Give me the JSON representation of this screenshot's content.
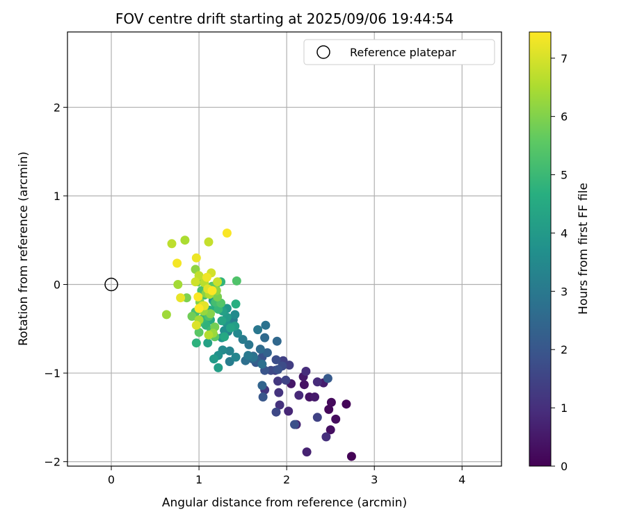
{
  "chart_data": {
    "type": "scatter",
    "title": "FOV centre drift starting at 2025/09/06 19:44:54",
    "xlabel": "Angular distance from reference (arcmin)",
    "ylabel": "Rotation from reference (arcmin)",
    "xlim": [
      -0.5,
      4.45
    ],
    "ylim": [
      -2.05,
      2.85
    ],
    "xticks": [
      0,
      1,
      2,
      3,
      4
    ],
    "yticks": [
      -2,
      -1,
      0,
      1,
      2
    ],
    "xtick_labels": [
      "0",
      "1",
      "2",
      "3",
      "4"
    ],
    "ytick_labels": [
      "−2",
      "−1",
      "0",
      "1",
      "2"
    ],
    "grid": true,
    "legend": {
      "position": "top-right",
      "label": "Reference platepar"
    },
    "reference_point": {
      "x": 0,
      "y": 0
    },
    "colorbar": {
      "label": "Hours from first FF file",
      "min": 0,
      "max": 7.45,
      "ticks": [
        0,
        1,
        2,
        3,
        4,
        5,
        6,
        7
      ],
      "tick_labels": [
        "0",
        "1",
        "2",
        "3",
        "4",
        "5",
        "6",
        "7"
      ],
      "colormap": "viridis"
    },
    "points": [
      [
        2.74,
        -1.94,
        0.05
      ],
      [
        2.68,
        -1.35,
        0.1
      ],
      [
        2.48,
        -1.41,
        0.15
      ],
      [
        2.51,
        -1.33,
        0.2
      ],
      [
        2.56,
        -1.52,
        0.25
      ],
      [
        2.5,
        -1.64,
        0.3
      ],
      [
        2.2,
        -1.13,
        0.35
      ],
      [
        2.26,
        -1.27,
        0.4
      ],
      [
        2.05,
        -1.12,
        0.45
      ],
      [
        2.19,
        -1.04,
        0.5
      ],
      [
        2.32,
        -1.27,
        0.55
      ],
      [
        2.42,
        -1.11,
        0.6
      ],
      [
        2.23,
        -1.89,
        0.7
      ],
      [
        2.11,
        -1.58,
        0.75
      ],
      [
        2.02,
        -1.43,
        0.8
      ],
      [
        2.14,
        -1.25,
        0.85
      ],
      [
        2.35,
        -1.1,
        0.9
      ],
      [
        2.22,
        -0.98,
        0.95
      ],
      [
        2.45,
        -1.72,
        1.0
      ],
      [
        1.92,
        -1.36,
        1.05
      ],
      [
        1.91,
        -1.22,
        1.1
      ],
      [
        1.75,
        -1.19,
        1.15
      ],
      [
        1.9,
        -1.09,
        1.2
      ],
      [
        1.87,
        -0.97,
        1.3
      ],
      [
        2.03,
        -0.91,
        1.35
      ],
      [
        1.96,
        -0.86,
        1.4
      ],
      [
        2.35,
        -1.5,
        1.45
      ],
      [
        1.99,
        -1.08,
        1.5
      ],
      [
        1.88,
        -1.44,
        1.6
      ],
      [
        1.82,
        -0.97,
        1.65
      ],
      [
        1.95,
        -0.92,
        1.7
      ],
      [
        1.88,
        -0.85,
        1.75
      ],
      [
        2.09,
        -1.58,
        1.8
      ],
      [
        1.9,
        -0.96,
        1.85
      ],
      [
        1.72,
        -0.82,
        1.9
      ],
      [
        1.75,
        -0.97,
        1.95
      ],
      [
        1.73,
        -1.27,
        2.0
      ],
      [
        1.65,
        -0.88,
        2.05
      ],
      [
        2.47,
        -1.06,
        2.1
      ],
      [
        1.56,
        -0.82,
        2.15
      ],
      [
        1.66,
        -0.86,
        2.2
      ],
      [
        1.62,
        -0.81,
        2.3
      ],
      [
        1.78,
        -0.77,
        2.35
      ],
      [
        1.72,
        -1.14,
        2.4
      ],
      [
        1.61,
        -0.84,
        2.45
      ],
      [
        1.89,
        -0.64,
        2.5
      ],
      [
        1.75,
        -0.6,
        2.55
      ],
      [
        1.7,
        -0.73,
        2.6
      ],
      [
        1.53,
        -0.86,
        2.7
      ],
      [
        1.72,
        -0.9,
        2.75
      ],
      [
        1.76,
        -0.46,
        2.8
      ],
      [
        1.62,
        -0.82,
        2.85
      ],
      [
        1.57,
        -0.68,
        2.9
      ],
      [
        1.67,
        -0.51,
        2.95
      ],
      [
        1.56,
        -0.8,
        3.0
      ],
      [
        1.5,
        -0.62,
        3.05
      ],
      [
        1.35,
        -0.87,
        3.1
      ],
      [
        1.39,
        -0.4,
        3.15
      ],
      [
        1.33,
        -0.53,
        3.2
      ],
      [
        1.35,
        -0.75,
        3.3
      ],
      [
        1.42,
        -0.82,
        3.35
      ],
      [
        1.34,
        -0.47,
        3.4
      ],
      [
        1.44,
        -0.55,
        3.45
      ],
      [
        1.27,
        -0.74,
        3.5
      ],
      [
        1.41,
        -0.34,
        3.55
      ],
      [
        1.33,
        -0.46,
        3.6
      ],
      [
        1.29,
        -0.52,
        3.65
      ],
      [
        1.22,
        -0.8,
        3.7
      ],
      [
        1.26,
        -0.6,
        3.75
      ],
      [
        1.3,
        -0.42,
        3.8
      ],
      [
        1.32,
        -0.27,
        3.9
      ],
      [
        1.16,
        -0.18,
        3.95
      ],
      [
        1.17,
        -0.84,
        4.0
      ],
      [
        1.32,
        -0.37,
        4.05
      ],
      [
        1.41,
        -0.47,
        4.1
      ],
      [
        1.22,
        -0.94,
        4.15
      ],
      [
        1.27,
        -0.3,
        4.2
      ],
      [
        1.1,
        -0.66,
        4.25
      ],
      [
        1.36,
        -0.49,
        4.3
      ],
      [
        1.26,
        -0.41,
        4.35
      ],
      [
        1.2,
        -0.24,
        4.4
      ],
      [
        1.29,
        -0.59,
        4.45
      ],
      [
        1.13,
        -0.4,
        4.5
      ],
      [
        1.12,
        -0.29,
        4.6
      ],
      [
        1.42,
        -0.22,
        4.65
      ],
      [
        1.18,
        -0.21,
        4.7
      ],
      [
        0.97,
        -0.66,
        4.75
      ],
      [
        1.08,
        -0.46,
        4.8
      ],
      [
        1.25,
        0.03,
        4.85
      ],
      [
        1.05,
        -0.38,
        4.9
      ],
      [
        1.22,
        -0.28,
        4.95
      ],
      [
        1.14,
        -0.52,
        5.0
      ],
      [
        1.0,
        -0.43,
        5.05
      ],
      [
        1.06,
        -0.12,
        5.1
      ],
      [
        1.19,
        -0.2,
        5.15
      ],
      [
        0.96,
        -0.31,
        5.2
      ],
      [
        1.03,
        -0.07,
        5.25
      ],
      [
        1.11,
        -0.36,
        5.3
      ],
      [
        1.43,
        0.04,
        5.35
      ],
      [
        1.25,
        -0.21,
        5.4
      ],
      [
        1.15,
        -0.02,
        5.45
      ],
      [
        1.0,
        -0.54,
        5.5
      ],
      [
        1.18,
        -0.59,
        5.55
      ],
      [
        1.19,
        -0.01,
        5.6
      ],
      [
        1.06,
        -0.25,
        5.65
      ],
      [
        0.99,
        0.03,
        5.7
      ],
      [
        0.92,
        -0.36,
        5.8
      ],
      [
        1.18,
        -0.48,
        5.85
      ],
      [
        1.21,
        -0.14,
        5.9
      ],
      [
        0.86,
        -0.15,
        5.95
      ],
      [
        1.01,
        -0.2,
        6.0
      ],
      [
        1.13,
        -0.33,
        6.05
      ],
      [
        1.08,
        -0.1,
        6.1
      ],
      [
        0.96,
        0.17,
        6.15
      ],
      [
        1.2,
        -0.07,
        6.2
      ],
      [
        1.05,
        -0.3,
        6.25
      ],
      [
        1.16,
        -0.55,
        6.3
      ],
      [
        0.63,
        -0.34,
        6.35
      ],
      [
        0.76,
        0.0,
        6.4
      ],
      [
        1.0,
        -0.4,
        6.45
      ],
      [
        0.84,
        0.5,
        6.5
      ],
      [
        1.12,
        -0.11,
        6.55
      ],
      [
        1.11,
        -0.57,
        6.6
      ],
      [
        1.06,
        0.02,
        6.65
      ],
      [
        0.69,
        0.46,
        6.7
      ],
      [
        1.0,
        0.1,
        6.75
      ],
      [
        1.11,
        0.48,
        6.8
      ],
      [
        1.21,
        0.03,
        6.85
      ],
      [
        0.96,
        0.03,
        6.9
      ],
      [
        1.14,
        0.13,
        6.95
      ],
      [
        1.04,
        -0.24,
        7.0
      ],
      [
        0.97,
        -0.46,
        7.05
      ],
      [
        1.1,
        -0.05,
        7.1
      ],
      [
        1.06,
        -0.24,
        7.15
      ],
      [
        0.79,
        -0.15,
        7.2
      ],
      [
        0.97,
        0.3,
        7.25
      ],
      [
        1.09,
        0.08,
        7.3
      ],
      [
        0.75,
        0.24,
        7.35
      ],
      [
        1.32,
        0.58,
        7.4
      ],
      [
        0.99,
        -0.14,
        7.42
      ],
      [
        1.15,
        -0.07,
        7.44
      ],
      [
        1.0,
        -0.27,
        7.45
      ]
    ]
  }
}
